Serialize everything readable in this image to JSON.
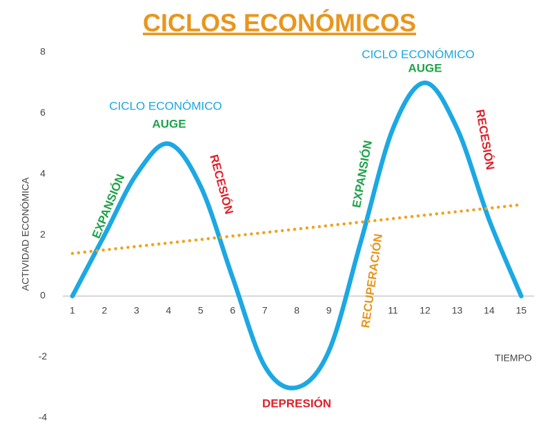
{
  "chart_data": {
    "type": "line",
    "title": "CICLOS ECONÓMICOS",
    "title_color": "#E8961E",
    "y_label": "ACTIVIDAD ECONÓMICA",
    "x_label": "TIEMPO",
    "x": [
      1,
      2,
      3,
      4,
      5,
      6,
      7,
      8,
      9,
      10,
      11,
      12,
      13,
      14,
      15
    ],
    "series": [
      {
        "color": "#1CA8E3",
        "values": [
          0,
          2,
          4,
          5,
          3.6,
          0.6,
          -2.3,
          -3,
          -1.8,
          1.8,
          5.5,
          7,
          5.5,
          2.5,
          0
        ]
      },
      {
        "color": "#F0A21E",
        "x": [
          1,
          15
        ],
        "values": [
          1.4,
          3.0
        ],
        "style": "dotted"
      }
    ],
    "xlim": [
      0.7,
      15.4
    ],
    "xticks": [
      1,
      2,
      3,
      4,
      5,
      6,
      7,
      8,
      9,
      11,
      12,
      13,
      14,
      15
    ],
    "ylim": [
      -4,
      8
    ],
    "yticks": [
      -4,
      -2,
      0,
      2,
      4,
      6,
      8
    ],
    "grid": false,
    "annotations": [
      {
        "text": "CICLO ECONÓMICO",
        "color": "#1AA7E0"
      },
      {
        "text": "AUGE",
        "color": "#1EA24A"
      },
      {
        "text": "EXPANSIÓN",
        "color": "#1EA24A"
      },
      {
        "text": "RECESIÓN",
        "color": "#E0202A"
      },
      {
        "text": "DEPRESIÓN",
        "color": "#E0202A"
      },
      {
        "text": "CICLO ECONÓMICO",
        "color": "#1AA7E0"
      },
      {
        "text": "AUGE",
        "color": "#1EA24A"
      },
      {
        "text": "EXPANSIÓN",
        "color": "#1EA24A"
      },
      {
        "text": "RECUPERACIÓN",
        "color": "#E8961E"
      },
      {
        "text": "RECESIÓN",
        "color": "#E0202A"
      }
    ]
  }
}
